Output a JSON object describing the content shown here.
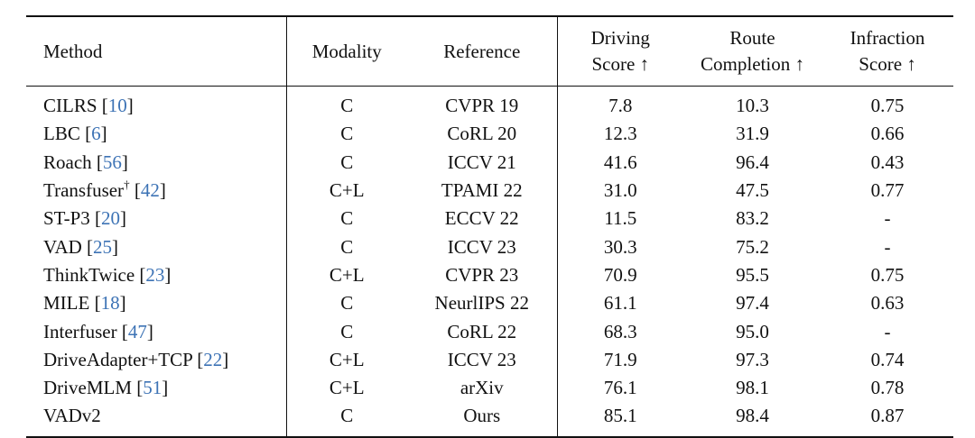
{
  "columns": {
    "method": "Method",
    "modality": "Modality",
    "reference": "Reference",
    "driving_score": [
      "Driving",
      "Score ↑"
    ],
    "route_completion": [
      "Route",
      "Completion ↑"
    ],
    "infraction_score": [
      "Infraction",
      "Score ↑"
    ]
  },
  "rows": [
    {
      "name": "CILRS",
      "sup": "",
      "cite": "10",
      "modality": "C",
      "reference": "CVPR 19",
      "ds": "7.8",
      "rc": "10.3",
      "is": "0.75"
    },
    {
      "name": "LBC",
      "sup": "",
      "cite": "6",
      "modality": "C",
      "reference": "CoRL 20",
      "ds": "12.3",
      "rc": "31.9",
      "is": "0.66"
    },
    {
      "name": "Roach",
      "sup": "",
      "cite": "56",
      "modality": "C",
      "reference": "ICCV 21",
      "ds": "41.6",
      "rc": "96.4",
      "is": "0.43"
    },
    {
      "name": "Transfuser",
      "sup": "†",
      "cite": "42",
      "modality": "C+L",
      "reference": "TPAMI 22",
      "ds": "31.0",
      "rc": "47.5",
      "is": "0.77"
    },
    {
      "name": "ST-P3",
      "sup": "",
      "cite": "20",
      "modality": "C",
      "reference": "ECCV 22",
      "ds": "11.5",
      "rc": "83.2",
      "is": "-"
    },
    {
      "name": "VAD",
      "sup": "",
      "cite": "25",
      "modality": "C",
      "reference": "ICCV 23",
      "ds": "30.3",
      "rc": "75.2",
      "is": "-"
    },
    {
      "name": "ThinkTwice",
      "sup": "",
      "cite": "23",
      "modality": "C+L",
      "reference": "CVPR 23",
      "ds": "70.9",
      "rc": "95.5",
      "is": "0.75"
    },
    {
      "name": "MILE",
      "sup": "",
      "cite": "18",
      "modality": "C",
      "reference": "NeurlIPS 22",
      "ds": "61.1",
      "rc": "97.4",
      "is": "0.63"
    },
    {
      "name": "Interfuser",
      "sup": "",
      "cite": "47",
      "modality": "C",
      "reference": "CoRL 22",
      "ds": "68.3",
      "rc": "95.0",
      "is": "-"
    },
    {
      "name": "DriveAdapter+TCP",
      "sup": "",
      "cite": "22",
      "modality": "C+L",
      "reference": "ICCV 23",
      "ds": "71.9",
      "rc": "97.3",
      "is": "0.74"
    },
    {
      "name": "DriveMLM",
      "sup": "",
      "cite": "51",
      "modality": "C+L",
      "reference": "arXiv",
      "ds": "76.1",
      "rc": "98.1",
      "is": "0.78"
    },
    {
      "name": "VADv2",
      "sup": "",
      "cite": "",
      "modality": "C",
      "reference": "Ours",
      "ds": "85.1",
      "rc": "98.4",
      "is": "0.87"
    }
  ],
  "colors": {
    "text": "#111111",
    "citation": "#3d73b5",
    "rule": "#111111"
  }
}
